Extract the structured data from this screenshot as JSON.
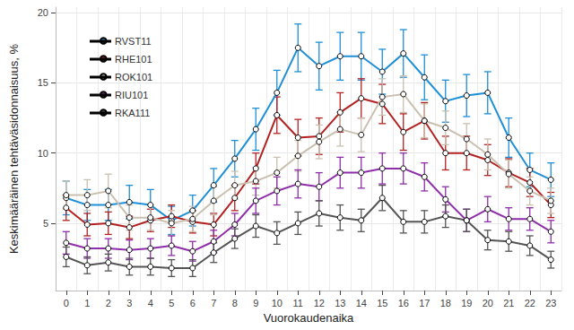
{
  "chart_data": {
    "type": "line",
    "x_label": "Vuorokaudenaika",
    "y_label": "Keskimääräinen tehtäväsidonnaisuus, %",
    "categories": [
      0,
      1,
      2,
      3,
      4,
      5,
      6,
      7,
      8,
      9,
      10,
      11,
      12,
      13,
      14,
      15,
      16,
      17,
      18,
      19,
      20,
      21,
      22,
      23
    ],
    "ylim": [
      0.2,
      20.4
    ],
    "yticks": [
      5,
      10,
      15,
      20
    ],
    "grid": true,
    "legend": "top-left",
    "marker": "circle",
    "series": [
      {
        "name": "RVST11",
        "color": "#1f8fd6",
        "values": [
          6.8,
          6.3,
          6.3,
          6.5,
          6.3,
          5.2,
          5.9,
          7.7,
          9.6,
          11.7,
          14.3,
          17.5,
          16.2,
          16.9,
          16.9,
          15.8,
          17.1,
          15.4,
          13.7,
          14.1,
          14.3,
          11.1,
          8.8,
          8.1
        ],
        "errors": [
          1.2,
          1.1,
          1.1,
          1.2,
          1.1,
          1.0,
          1.1,
          1.2,
          1.3,
          1.5,
          1.6,
          1.7,
          1.7,
          1.7,
          1.7,
          1.6,
          1.7,
          1.6,
          1.5,
          1.5,
          1.5,
          1.4,
          1.2,
          1.2
        ]
      },
      {
        "name": "RHE101",
        "color": "#b22222",
        "values": [
          6.1,
          4.9,
          5.0,
          4.7,
          5.2,
          5.5,
          5.1,
          4.9,
          6.8,
          8.9,
          12.7,
          11.1,
          11.2,
          12.9,
          13.9,
          13.5,
          11.5,
          12.3,
          10.0,
          10.0,
          9.5,
          8.6,
          7.9,
          6.3
        ],
        "errors": [
          0.9,
          0.8,
          0.8,
          0.8,
          0.8,
          0.8,
          0.8,
          0.8,
          0.9,
          1.1,
          1.3,
          1.3,
          1.3,
          1.4,
          1.4,
          1.4,
          1.3,
          1.3,
          1.2,
          1.2,
          1.1,
          1.0,
          1.0,
          0.9
        ]
      },
      {
        "name": "ROK101",
        "color": "#c9c0b0",
        "values": [
          7.0,
          7.0,
          7.3,
          5.4,
          5.4,
          5.0,
          5.3,
          6.6,
          7.7,
          8.0,
          8.6,
          9.8,
          10.8,
          11.7,
          11.3,
          14.0,
          14.2,
          12.3,
          11.8,
          11.0,
          9.9,
          8.5,
          7.3,
          6.6
        ],
        "errors": [
          1.0,
          1.1,
          1.2,
          0.9,
          0.9,
          0.9,
          0.9,
          1.0,
          1.0,
          1.0,
          1.1,
          1.1,
          1.2,
          1.2,
          1.2,
          1.3,
          1.3,
          1.2,
          1.2,
          1.1,
          1.1,
          1.0,
          1.0,
          0.9
        ]
      },
      {
        "name": "RIU101",
        "color": "#8e2ea8",
        "values": [
          3.6,
          3.2,
          3.2,
          3.1,
          3.2,
          3.4,
          3.0,
          3.7,
          4.9,
          6.6,
          7.3,
          7.8,
          7.6,
          8.6,
          8.6,
          8.9,
          8.9,
          8.3,
          6.7,
          5.2,
          6.0,
          5.3,
          5.3,
          4.4
        ],
        "errors": [
          0.8,
          0.7,
          0.7,
          0.7,
          0.7,
          0.7,
          0.7,
          0.8,
          0.8,
          0.9,
          1.0,
          1.0,
          1.0,
          1.1,
          1.1,
          1.1,
          1.1,
          1.0,
          0.9,
          0.8,
          0.9,
          0.8,
          0.8,
          0.8
        ]
      },
      {
        "name": "RKA111",
        "color": "#555555",
        "values": [
          2.6,
          2.0,
          2.2,
          1.9,
          1.9,
          1.8,
          1.8,
          2.9,
          3.9,
          4.8,
          4.3,
          5.0,
          5.7,
          5.4,
          5.2,
          6.8,
          5.1,
          5.1,
          5.5,
          5.2,
          3.8,
          3.7,
          3.4,
          2.4
        ],
        "errors": [
          0.7,
          0.6,
          0.6,
          0.6,
          0.6,
          0.6,
          0.6,
          0.7,
          0.7,
          0.8,
          0.8,
          0.8,
          0.9,
          0.9,
          0.8,
          0.9,
          0.8,
          0.8,
          0.8,
          0.8,
          0.7,
          0.7,
          0.7,
          0.6
        ]
      }
    ]
  }
}
